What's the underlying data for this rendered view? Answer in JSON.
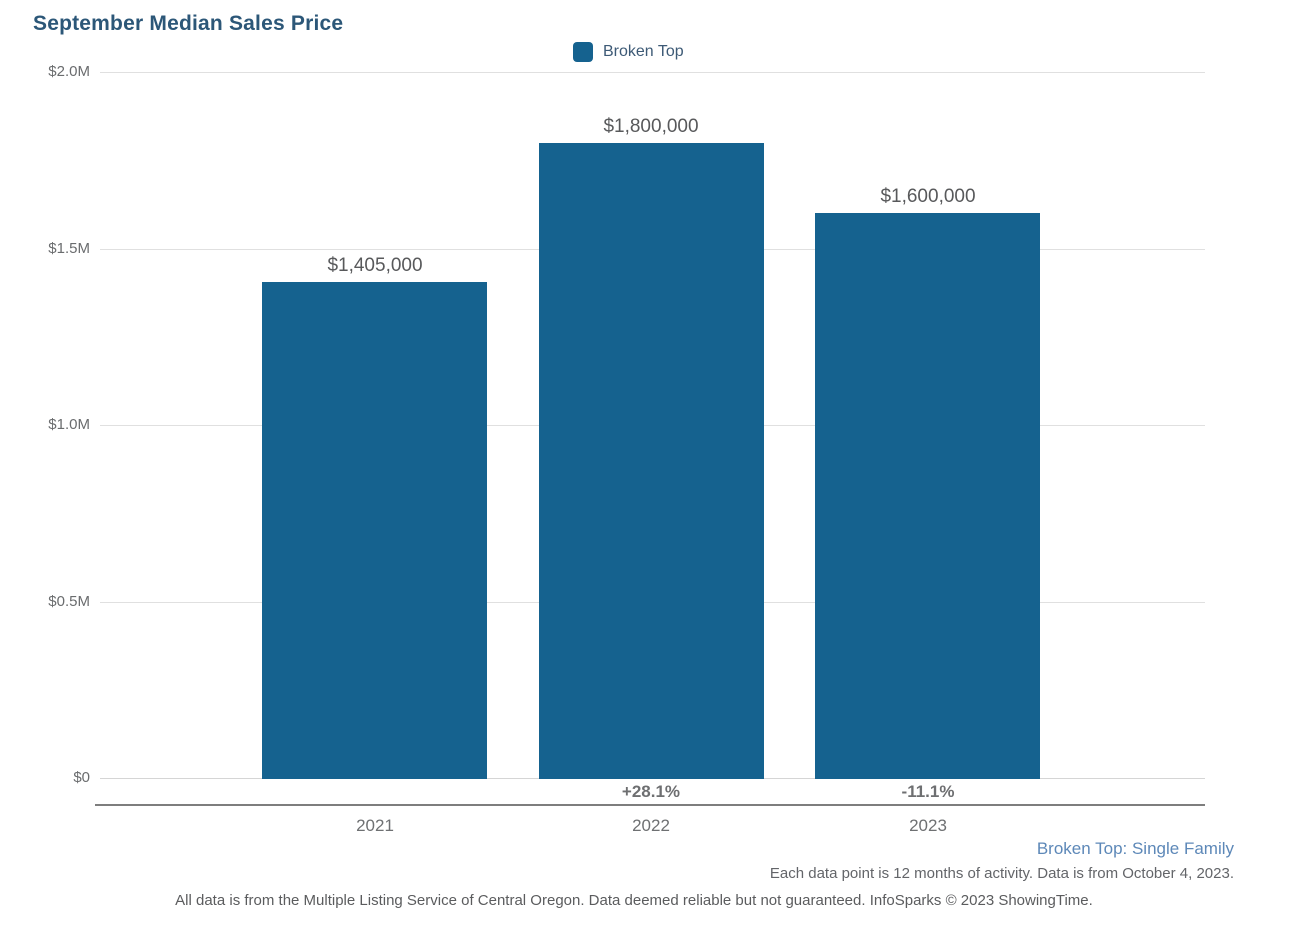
{
  "title": "September Median Sales Price",
  "legend": {
    "label": "Broken Top",
    "color": "#15628F"
  },
  "chart_data": {
    "type": "bar",
    "title": "September Median Sales Price",
    "series_name": "Broken Top",
    "categories": [
      "2021",
      "2022",
      "2023"
    ],
    "values": [
      1405000,
      1800000,
      1600000
    ],
    "value_labels": [
      "$1,405,000",
      "$1,800,000",
      "$1,600,000"
    ],
    "pct_change_labels": [
      "",
      "+28.1%",
      "-11.1%"
    ],
    "xlabel": "",
    "ylabel": "",
    "ylim": [
      0,
      2000000
    ],
    "yticks": [
      0,
      500000,
      1000000,
      1500000,
      2000000
    ],
    "ytick_labels": [
      "$0",
      "$0.5M",
      "$1.0M",
      "$1.5M",
      "$2.0M"
    ],
    "grid": true,
    "legend_position": "top-center",
    "bar_color": "#15628F"
  },
  "footer": {
    "series_detail": "Broken Top: Single Family",
    "data_note": "Each data point is 12 months of activity. Data is from October 4, 2023.",
    "disclaimer": "All data is from the Multiple Listing Service of Central Oregon. Data deemed reliable but not guaranteed. InfoSparks © 2023 ShowingTime."
  }
}
